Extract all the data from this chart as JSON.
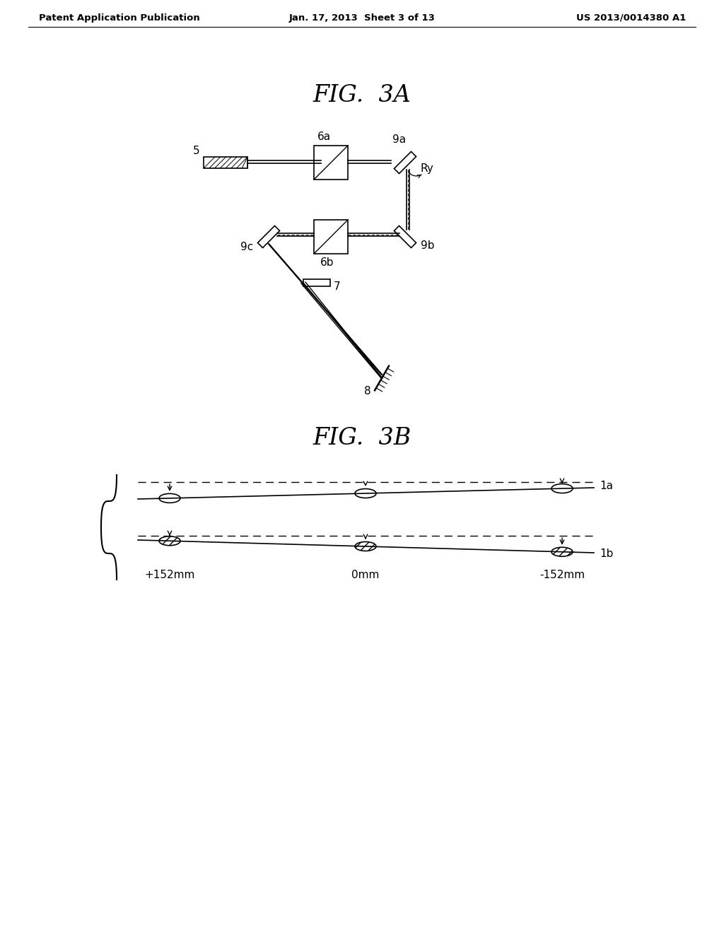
{
  "bg_color": "#ffffff",
  "text_color": "#000000",
  "header_left": "Patent Application Publication",
  "header_center": "Jan. 17, 2013  Sheet 3 of 13",
  "header_right": "US 2013/0014380 A1",
  "fig3a_title": "FIG.  3A",
  "fig3b_title": "FIG.  3B",
  "label_5": "5",
  "label_6a": "6a",
  "label_6b": "6b",
  "label_7": "7",
  "label_8": "8",
  "label_9a": "9a",
  "label_9b": "9b",
  "label_9c": "9c",
  "label_Ry": "Ry",
  "label_1a": "1a",
  "label_1b": "1b",
  "label_p152": "+152mm",
  "label_0mm": "0mm",
  "label_n152": "-152mm"
}
